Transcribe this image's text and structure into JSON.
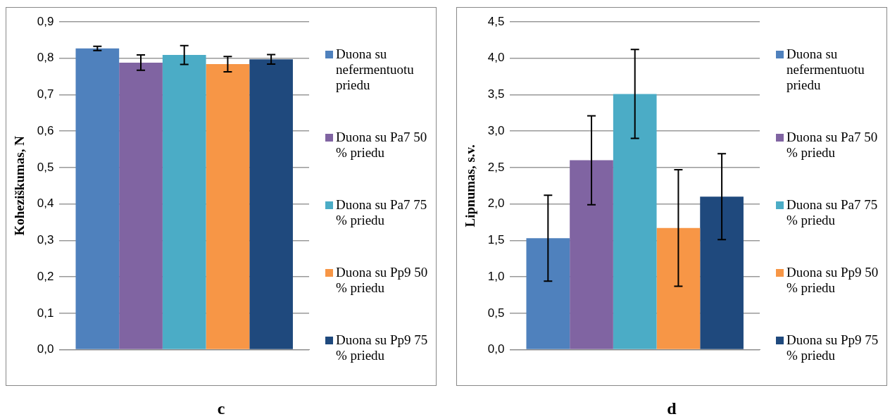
{
  "chart_data": [
    {
      "type": "bar",
      "title": "c",
      "ylabel": "Kohezіškumas, N",
      "categories": [
        null
      ],
      "legend": "right",
      "grid": "y",
      "ylim": [
        0,
        0.9
      ],
      "yticks": [
        {
          "value": 0,
          "label": "0,0"
        },
        {
          "value": 0.1,
          "label": "0,1"
        },
        {
          "value": 0.2,
          "label": "0,2"
        },
        {
          "value": 0.3,
          "label": "0,3"
        },
        {
          "value": 0.4,
          "label": "0,4"
        },
        {
          "value": 0.5,
          "label": "0,5"
        },
        {
          "value": 0.6,
          "label": "0,6"
        },
        {
          "value": 0.7,
          "label": "0,7"
        },
        {
          "value": 0.8,
          "label": "0,8"
        },
        {
          "value": 0.9,
          "label": "0,9"
        }
      ],
      "series": [
        {
          "name": "Duona su nefermentuotu priedu",
          "color": "#4f81bd",
          "values": [
            0.827
          ],
          "errors": [
            0.006
          ]
        },
        {
          "name": "Duona su Pa7 50 % priedu",
          "color": "#8064a2",
          "values": [
            0.788
          ],
          "errors": [
            0.021
          ]
        },
        {
          "name": "Duona su Pa7 75 % priedu",
          "color": "#4bacc6",
          "values": [
            0.809
          ],
          "errors": [
            0.026
          ]
        },
        {
          "name": "Duona su Pp9 50 % priedu",
          "color": "#f79646",
          "values": [
            0.784
          ],
          "errors": [
            0.021
          ]
        },
        {
          "name": "Duona su Pp9 75 % priedu",
          "color": "#1f497d",
          "values": [
            0.797
          ],
          "errors": [
            0.013
          ]
        }
      ]
    },
    {
      "type": "bar",
      "title": "d",
      "ylabel": "Lipnumas, s.v.",
      "categories": [
        null
      ],
      "legend": "right",
      "grid": "y",
      "ylim": [
        0,
        4.5
      ],
      "yticks": [
        {
          "value": 0,
          "label": "0,0"
        },
        {
          "value": 0.5,
          "label": "0,5"
        },
        {
          "value": 1,
          "label": "1,0"
        },
        {
          "value": 1.5,
          "label": "1,5"
        },
        {
          "value": 2,
          "label": "2,0"
        },
        {
          "value": 2.5,
          "label": "2,5"
        },
        {
          "value": 3,
          "label": "3,0"
        },
        {
          "value": 3.5,
          "label": "3,5"
        },
        {
          "value": 4,
          "label": "4,0"
        },
        {
          "value": 4.5,
          "label": "4,5"
        }
      ],
      "series": [
        {
          "name": "Duona su nefermentuotu priedu",
          "color": "#4f81bd",
          "values": [
            1.53
          ],
          "errors": [
            0.59
          ]
        },
        {
          "name": "Duona su Pa7 50 % priedu",
          "color": "#8064a2",
          "values": [
            2.6
          ],
          "errors": [
            0.61
          ]
        },
        {
          "name": "Duona su Pa7 75 % priedu",
          "color": "#4bacc6",
          "values": [
            3.51
          ],
          "errors": [
            0.61
          ]
        },
        {
          "name": "Duona su Pp9 50 % priedu",
          "color": "#f79646",
          "values": [
            1.67
          ],
          "errors": [
            0.8
          ]
        },
        {
          "name": "Duona su Pp9 75 % priedu",
          "color": "#1f497d",
          "values": [
            2.1
          ],
          "errors": [
            0.59
          ]
        }
      ]
    }
  ]
}
